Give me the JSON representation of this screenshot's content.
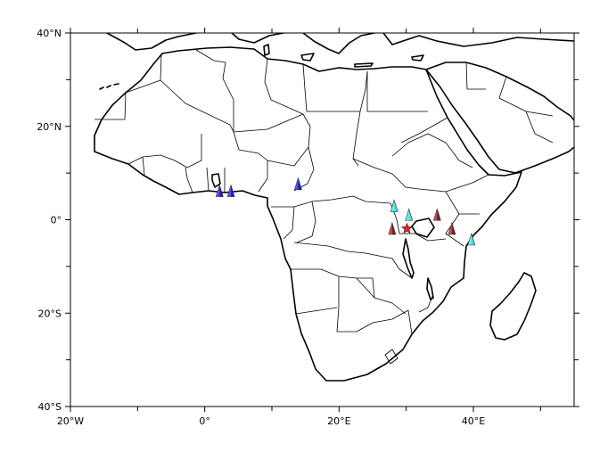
{
  "map": {
    "extent": {
      "lon_min": -20,
      "lon_max": 55,
      "lat_min": -40,
      "lat_max": 40
    },
    "lon_tick_labels": [
      {
        "value": -20,
        "text": "20°W"
      },
      {
        "value": 0,
        "text": "0°"
      },
      {
        "value": 20,
        "text": "20°E"
      },
      {
        "value": 40,
        "text": "40°E"
      }
    ],
    "lat_tick_labels": [
      {
        "value": 40,
        "text": "40°N"
      },
      {
        "value": 20,
        "text": "20°N"
      },
      {
        "value": 0,
        "text": "0°"
      },
      {
        "value": -20,
        "text": "20°S"
      },
      {
        "value": -40,
        "text": "40°S"
      }
    ],
    "lon_minor_ticks": [
      -10,
      10,
      30,
      50
    ],
    "lat_minor_ticks": [
      30,
      10,
      -10,
      -30
    ],
    "colors": {
      "blue": "#1a1adb",
      "cyan": "#3ce6e6",
      "darkred": "#8b1c1c",
      "red": "#ff1a1a"
    },
    "markers": [
      {
        "lon": 2.2,
        "lat": 6.2,
        "color": "blue",
        "shape": "triangle"
      },
      {
        "lon": 3.9,
        "lat": 6.2,
        "color": "blue",
        "shape": "triangle"
      },
      {
        "lon": 13.9,
        "lat": 7.7,
        "color": "blue",
        "shape": "triangle"
      },
      {
        "lon": 28.2,
        "lat": 3.0,
        "color": "cyan",
        "shape": "triangle"
      },
      {
        "lon": 30.4,
        "lat": 1.1,
        "color": "cyan",
        "shape": "triangle"
      },
      {
        "lon": 39.7,
        "lat": -4.2,
        "color": "cyan",
        "shape": "triangle"
      },
      {
        "lon": 34.6,
        "lat": 1.1,
        "color": "darkred",
        "shape": "triangle"
      },
      {
        "lon": 27.9,
        "lat": -1.9,
        "color": "darkred",
        "shape": "triangle"
      },
      {
        "lon": 36.8,
        "lat": -1.9,
        "color": "darkred",
        "shape": "triangle"
      },
      {
        "lon": 30.1,
        "lat": -1.9,
        "color": "red",
        "shape": "star"
      }
    ]
  }
}
